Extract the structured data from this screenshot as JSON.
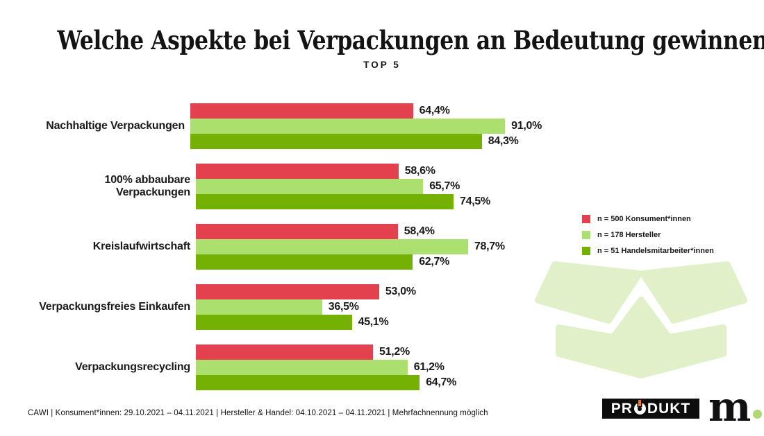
{
  "header": {
    "title": "Welche Aspekte bei Verpackungen an Bedeutung gewinnen",
    "subtitle": "TOP 5"
  },
  "chart_data": {
    "type": "bar",
    "orientation": "horizontal",
    "unit": "%",
    "xlim": [
      0,
      100
    ],
    "grid": false,
    "legend_position": "right",
    "categories": [
      "Nachhaltige Verpackungen",
      "100% abbaubare Verpackungen",
      "Kreislaufwirtschaft",
      "Verpackungsfreies Einkaufen",
      "Verpackungsrecycling"
    ],
    "series": [
      {
        "name": "n = 500 Konsument*innen",
        "color": "#e4414f",
        "values": [
          64.4,
          58.6,
          58.4,
          53.0,
          51.2
        ],
        "labels": [
          "64,4%",
          "58,6%",
          "58,4%",
          "53,0%",
          "51,2%"
        ]
      },
      {
        "name": "n = 178 Hersteller",
        "color": "#abe06e",
        "values": [
          91.0,
          65.7,
          78.7,
          36.5,
          61.2
        ],
        "labels": [
          "91,0%",
          "65,7%",
          "78,7%",
          "36,5%",
          "61,2%"
        ]
      },
      {
        "name": "n = 51 Handelsmitarbeiter*innen",
        "color": "#75b103",
        "values": [
          84.3,
          74.5,
          62.7,
          45.1,
          64.7
        ],
        "labels": [
          "84,3%",
          "74,5%",
          "62,7%",
          "45,1%",
          "64,7%"
        ]
      }
    ]
  },
  "legend": {
    "items": [
      {
        "label": "n = 500 Konsument*innen",
        "color": "#e4414f"
      },
      {
        "label": "n = 178 Hersteller",
        "color": "#abe06e"
      },
      {
        "label": "n = 51 Handelsmitarbeiter*innen",
        "color": "#75b103"
      }
    ]
  },
  "footer": {
    "note": "CAWI | Konsument*innen: 29.10.2021 – 04.11.2021 | Hersteller & Handel: 04.10.2021 – 04.11.2021 | Mehrfachnennung möglich"
  },
  "branding": {
    "produkt_prefix": "PR",
    "produkt_suffix": "DUKT",
    "m_letter": "m"
  },
  "icons": {
    "open_box": "open-box-icon",
    "produkt_o": "power-button-o-icon",
    "m_dot": "green-period-dot"
  },
  "colors": {
    "red": "#e4414f",
    "light_green": "#abe06e",
    "dark_green": "#75b103",
    "pale_green_box": "#e0f1ca",
    "logo_orange": "#ed7622",
    "m_dot_green": "#aed871",
    "ink": "#131313"
  }
}
